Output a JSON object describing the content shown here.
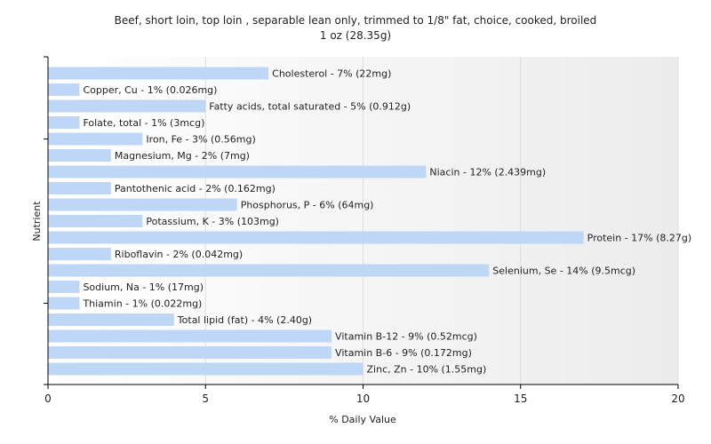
{
  "chart_data": {
    "type": "bar",
    "orientation": "horizontal",
    "title": "Beef, short loin, top loin , separable lean only, trimmed to 1/8\" fat, choice, cooked, broiled",
    "subtitle": "1 oz (28.35g)",
    "xlabel": "% Daily Value",
    "ylabel": "Nutrient",
    "xlim": [
      0,
      20
    ],
    "xticks": [
      "0",
      "5",
      "10",
      "15",
      "20"
    ],
    "grid": true,
    "categories": [
      "Cholesterol",
      "Copper, Cu",
      "Fatty acids, total saturated",
      "Folate, total",
      "Iron, Fe",
      "Magnesium, Mg",
      "Niacin",
      "Pantothenic acid",
      "Phosphorus, P",
      "Potassium, K",
      "Protein",
      "Riboflavin",
      "Selenium, Se",
      "Sodium, Na",
      "Thiamin",
      "Total lipid (fat)",
      "Vitamin B-12",
      "Vitamin B-6",
      "Zinc, Zn"
    ],
    "values": [
      7,
      1,
      5,
      1,
      3,
      2,
      12,
      2,
      6,
      3,
      17,
      2,
      14,
      1,
      1,
      4,
      9,
      9,
      10
    ],
    "labels": [
      "Cholesterol - 7% (22mg)",
      "Copper, Cu - 1% (0.026mg)",
      "Fatty acids, total saturated - 5% (0.912g)",
      "Folate, total - 1% (3mcg)",
      "Iron, Fe - 3% (0.56mg)",
      "Magnesium, Mg - 2% (7mg)",
      "Niacin - 12% (2.439mg)",
      "Pantothenic acid - 2% (0.162mg)",
      "Phosphorus, P - 6% (64mg)",
      "Potassium, K - 3% (103mg)",
      "Protein - 17% (8.27g)",
      "Riboflavin - 2% (0.042mg)",
      "Selenium, Se - 14% (9.5mcg)",
      "Sodium, Na - 1% (17mg)",
      "Thiamin - 1% (0.022mg)",
      "Total lipid (fat) - 4% (2.40g)",
      "Vitamin B-12 - 9% (0.52mcg)",
      "Vitamin B-6 - 9% (0.172mg)",
      "Zinc, Zn - 10% (1.55mg)"
    ],
    "colors": {
      "bar": "#bfd7f7",
      "grid": "#dddddd",
      "axis": "#000000",
      "plot_gradient_right": "#ececec"
    }
  }
}
